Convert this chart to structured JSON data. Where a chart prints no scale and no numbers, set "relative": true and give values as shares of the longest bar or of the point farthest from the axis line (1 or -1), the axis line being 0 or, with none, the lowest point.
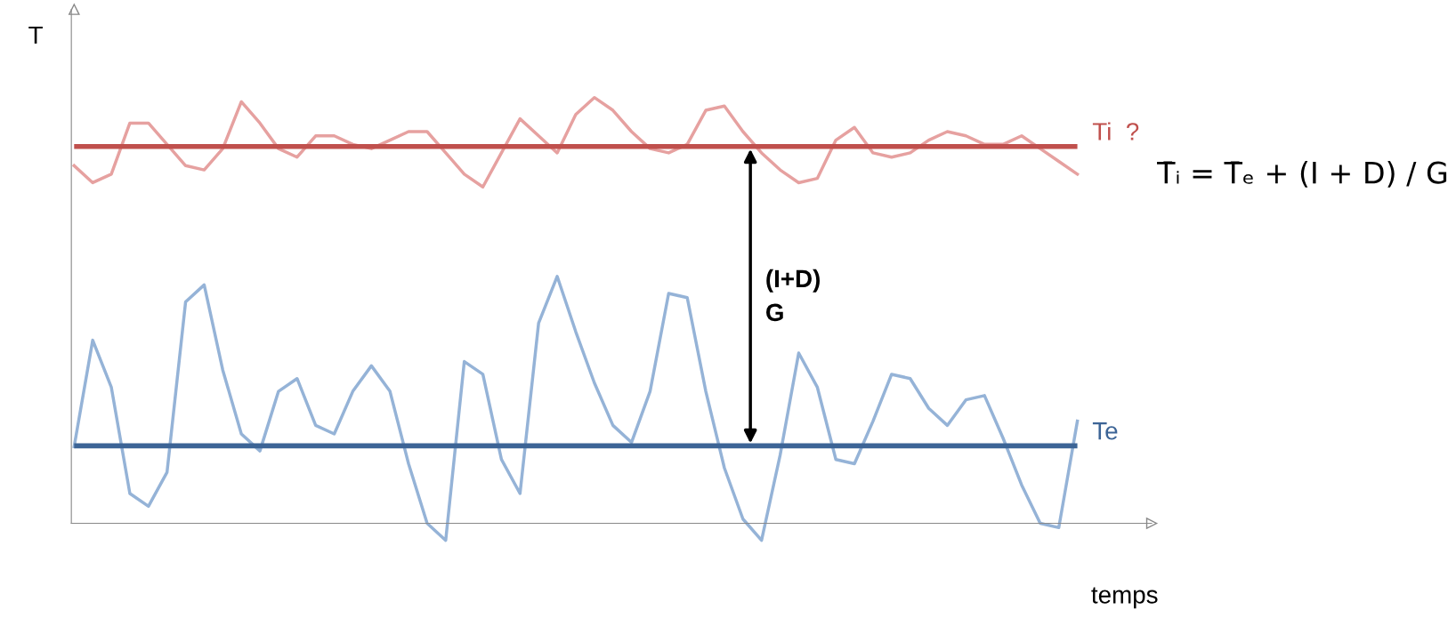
{
  "chart_data": {
    "type": "line",
    "relative": true,
    "xlabel": "temps",
    "ylabel": "T",
    "categories": [
      null,
      null,
      null,
      null,
      null,
      null,
      null,
      null,
      null,
      null,
      null,
      null,
      null,
      null,
      null,
      null,
      null,
      null,
      null,
      null,
      null,
      null,
      null,
      null,
      null,
      null,
      null,
      null,
      null,
      null,
      null,
      null,
      null,
      null,
      null,
      null,
      null,
      null,
      null,
      null,
      null,
      null,
      null,
      null,
      null,
      null,
      null,
      null,
      null,
      null,
      null,
      null,
      null,
      null,
      null
    ],
    "series": [
      {
        "color": "#e6a1a0",
        "values": [
          0.84,
          0.8,
          0.82,
          0.94,
          0.94,
          0.89,
          0.84,
          0.83,
          0.88,
          0.99,
          0.94,
          0.88,
          0.86,
          0.91,
          0.91,
          0.89,
          0.88,
          0.9,
          0.92,
          0.92,
          0.87,
          0.82,
          0.79,
          0.87,
          0.95,
          0.91,
          0.87,
          0.96,
          1.0,
          0.97,
          0.92,
          0.88,
          0.87,
          0.89,
          0.97,
          0.98,
          0.92,
          0.87,
          0.83,
          0.8,
          0.81,
          0.9,
          0.93,
          0.87,
          0.86,
          0.87,
          0.9,
          0.92,
          0.91,
          0.89,
          0.89,
          0.91,
          0.88,
          0.85,
          0.82
        ]
      },
      {
        "color": "#95b3d7",
        "values": [
          0.18,
          0.43,
          0.32,
          0.07,
          0.04,
          0.12,
          0.52,
          0.56,
          0.36,
          0.21,
          0.17,
          0.31,
          0.34,
          0.23,
          0.21,
          0.31,
          0.37,
          0.31,
          0.14,
          0.0,
          -0.04,
          0.38,
          0.35,
          0.15,
          0.07,
          0.47,
          0.58,
          0.45,
          0.33,
          0.23,
          0.19,
          0.31,
          0.54,
          0.53,
          0.31,
          0.13,
          0.01,
          -0.04,
          0.16,
          0.4,
          0.32,
          0.15,
          0.14,
          0.24,
          0.35,
          0.34,
          0.27,
          0.23,
          0.29,
          0.3,
          0.2,
          0.09,
          0.0,
          -0.01,
          0.24
        ]
      }
    ],
    "ref_lines": [
      {
        "axis": "y",
        "value": 0.885,
        "label": "Ti  ?",
        "color": "#c0504d"
      },
      {
        "axis": "y",
        "value": 0.182,
        "label": "Te",
        "color": "#3c6496"
      }
    ],
    "annotations": [
      "(I+D)\nG",
      "T̄ᵢ = T̄ₑ + (I + D) / G"
    ],
    "legend": false,
    "marker": "none",
    "line_style": "solid",
    "tick_labels": false
  }
}
